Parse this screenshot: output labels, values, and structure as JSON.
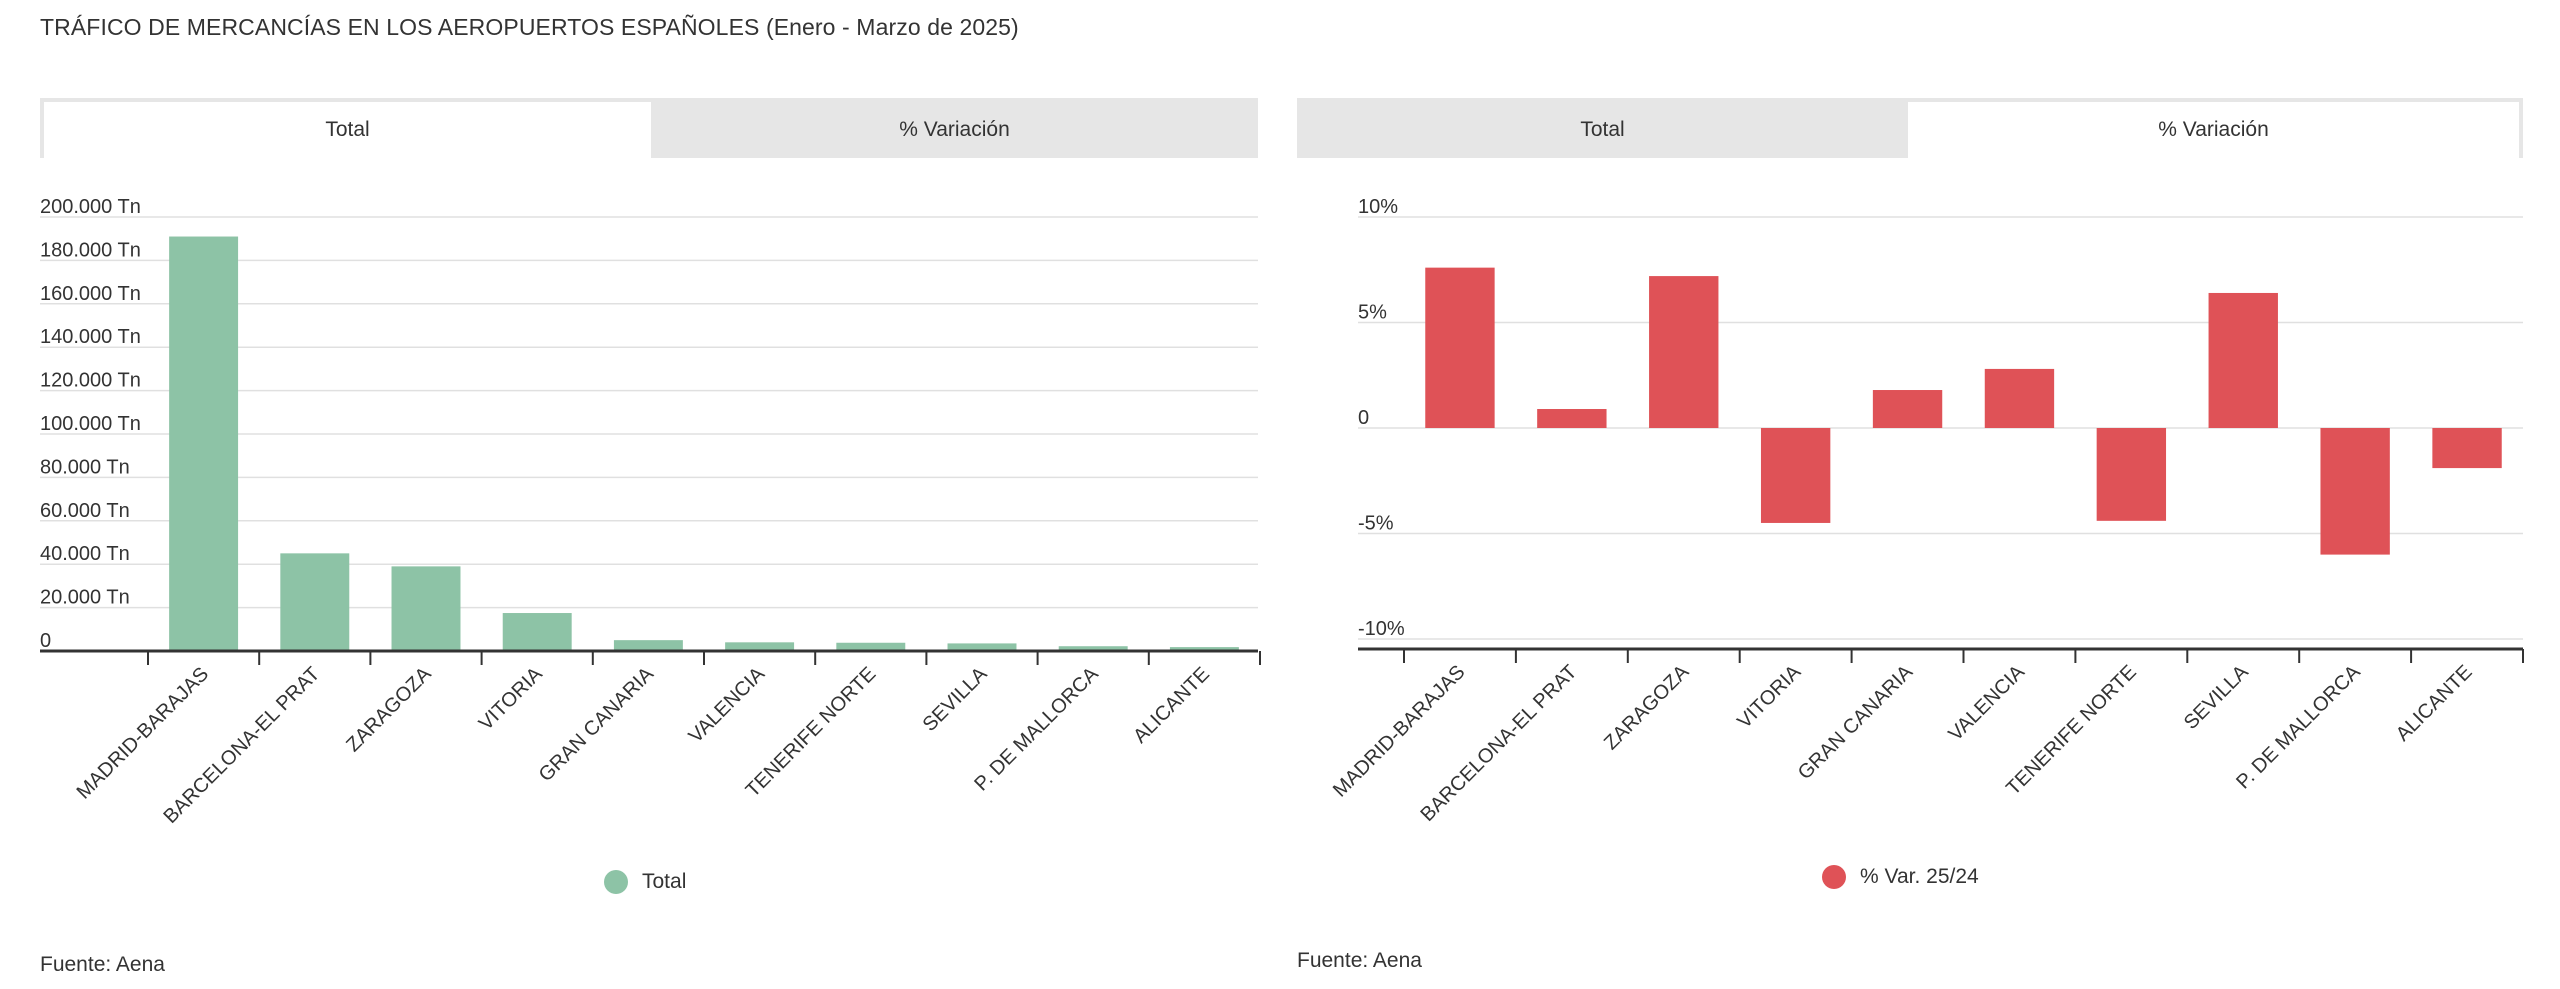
{
  "page": {
    "title": "TRÁFICO DE MERCANCÍAS EN LOS AEROPUERTOS ESPAÑOLES (Enero - Marzo de 2025)"
  },
  "left_panel": {
    "tabs": [
      {
        "label": "Total",
        "active": true
      },
      {
        "label": "% Variación",
        "active": false
      }
    ],
    "legend_label": "Total",
    "source": "Fuente: Aena"
  },
  "right_panel": {
    "tabs": [
      {
        "label": "Total",
        "active": false
      },
      {
        "label": "% Variación",
        "active": true
      }
    ],
    "legend_label": "% Var. 25/24",
    "source": "Fuente: Aena"
  },
  "colors": {
    "total_bar": "#8dc3a6",
    "variation_bar": "#df5257",
    "grid": "#e0e0e0",
    "axis": "#333333"
  },
  "chart_data": [
    {
      "type": "bar",
      "title": "Total",
      "categories": [
        "MADRID-BARAJAS",
        "BARCELONA-EL PRAT",
        "ZARAGOZA",
        "VITORIA",
        "GRAN CANARIA",
        "VALENCIA",
        "TENERIFE NORTE",
        "SEVILLA",
        "P. DE MALLORCA",
        "ALICANTE"
      ],
      "series": [
        {
          "name": "Total",
          "values": [
            191000,
            45000,
            39000,
            17500,
            5000,
            4000,
            3800,
            3500,
            2200,
            1800
          ]
        }
      ],
      "ylim": [
        0,
        200000
      ],
      "yticks": [
        0,
        20000,
        40000,
        60000,
        80000,
        100000,
        120000,
        140000,
        160000,
        180000,
        200000
      ],
      "ytick_labels": [
        "0",
        "20.000 Tn",
        "40.000 Tn",
        "60.000 Tn",
        "80.000 Tn",
        "100.000 Tn",
        "120.000 Tn",
        "140.000 Tn",
        "160.000 Tn",
        "180.000 Tn",
        "200.000 Tn"
      ],
      "legend": "bottom-center"
    },
    {
      "type": "bar",
      "title": "% Variación",
      "categories": [
        "MADRID-BARAJAS",
        "BARCELONA-EL PRAT",
        "ZARAGOZA",
        "VITORIA",
        "GRAN CANARIA",
        "VALENCIA",
        "TENERIFE NORTE",
        "SEVILLA",
        "P. DE MALLORCA",
        "ALICANTE"
      ],
      "series": [
        {
          "name": "% Var. 25/24",
          "values": [
            7.6,
            0.9,
            7.2,
            -4.5,
            1.8,
            2.8,
            -4.4,
            6.4,
            -6.0,
            -1.9
          ]
        }
      ],
      "ylim": [
        -10,
        10
      ],
      "yticks": [
        -10,
        -5,
        0,
        5,
        10
      ],
      "ytick_labels": [
        "-10%",
        "-5%",
        "0",
        "5%",
        "10%"
      ],
      "legend": "bottom-center"
    }
  ]
}
